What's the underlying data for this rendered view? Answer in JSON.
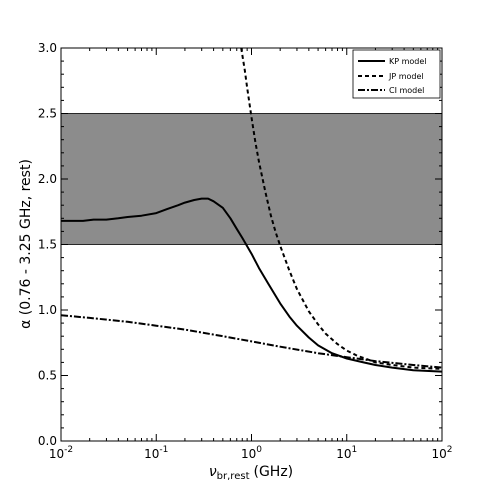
{
  "chart_data": {
    "type": "line",
    "x_scale": "log",
    "xlim": [
      0.01,
      100
    ],
    "ylim": [
      0.0,
      3.0
    ],
    "xlabel": "ν",
    "xlabel_sub": "br,rest",
    "xlabel_unit": "(GHz)",
    "ylabel": "α (0.76 - 3.25 GHz, rest)",
    "x_ticks": [
      {
        "value": 0.01,
        "base": "10",
        "exp": "-2"
      },
      {
        "value": 0.1,
        "base": "10",
        "exp": "-1"
      },
      {
        "value": 1,
        "base": "10",
        "exp": "0"
      },
      {
        "value": 10,
        "base": "10",
        "exp": "1"
      },
      {
        "value": 100,
        "base": "10",
        "exp": "2"
      }
    ],
    "y_ticks": [
      {
        "value": 0.0,
        "label": "0.0"
      },
      {
        "value": 0.5,
        "label": "0.5"
      },
      {
        "value": 1.0,
        "label": "1.0"
      },
      {
        "value": 1.5,
        "label": "1.5"
      },
      {
        "value": 2.0,
        "label": "2.0"
      },
      {
        "value": 2.5,
        "label": "2.5"
      },
      {
        "value": 3.0,
        "label": "3.0"
      }
    ],
    "shaded_band": {
      "y_from": 1.5,
      "y_to": 2.5,
      "color": "#8c8c8c"
    },
    "legend_position": "top-right",
    "series": [
      {
        "name": "KP model",
        "style": "solid",
        "x": [
          0.01,
          0.013,
          0.017,
          0.022,
          0.03,
          0.04,
          0.05,
          0.07,
          0.1,
          0.13,
          0.17,
          0.2,
          0.25,
          0.3,
          0.35,
          0.4,
          0.5,
          0.6,
          0.7,
          0.8,
          1.0,
          1.2,
          1.5,
          2.0,
          2.5,
          3.0,
          4.0,
          5.0,
          7.0,
          10,
          15,
          20,
          30,
          50,
          100
        ],
        "y": [
          1.68,
          1.68,
          1.68,
          1.69,
          1.69,
          1.7,
          1.71,
          1.72,
          1.74,
          1.77,
          1.8,
          1.82,
          1.84,
          1.85,
          1.85,
          1.83,
          1.78,
          1.7,
          1.62,
          1.55,
          1.43,
          1.32,
          1.2,
          1.05,
          0.95,
          0.88,
          0.79,
          0.73,
          0.67,
          0.63,
          0.6,
          0.58,
          0.56,
          0.54,
          0.53
        ]
      },
      {
        "name": "JP model",
        "style": "dashed",
        "x": [
          0.78,
          0.85,
          0.9,
          1.0,
          1.1,
          1.2,
          1.4,
          1.6,
          1.8,
          2.0,
          2.5,
          3.0,
          4.0,
          5.0,
          6.0,
          8.0,
          10,
          13,
          17,
          20,
          30,
          50,
          100
        ],
        "y": [
          3.0,
          2.83,
          2.7,
          2.47,
          2.28,
          2.13,
          1.9,
          1.72,
          1.59,
          1.49,
          1.3,
          1.16,
          0.99,
          0.89,
          0.82,
          0.74,
          0.69,
          0.65,
          0.62,
          0.6,
          0.58,
          0.56,
          0.55
        ]
      },
      {
        "name": "CI model",
        "style": "dashdot",
        "x": [
          0.01,
          0.02,
          0.05,
          0.1,
          0.2,
          0.5,
          1.0,
          2.0,
          5.0,
          10,
          20,
          50,
          100
        ],
        "y": [
          0.96,
          0.94,
          0.91,
          0.88,
          0.85,
          0.8,
          0.76,
          0.72,
          0.67,
          0.64,
          0.61,
          0.58,
          0.56
        ]
      }
    ]
  }
}
